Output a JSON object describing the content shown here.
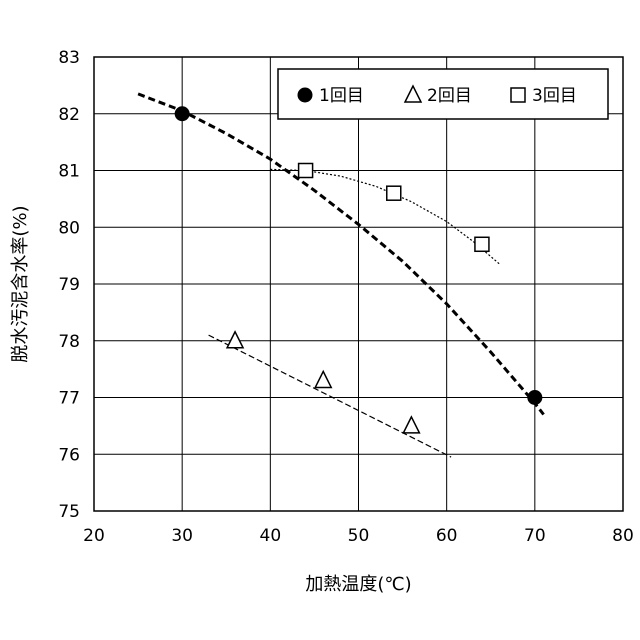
{
  "chart_data": {
    "type": "scatter",
    "title": "",
    "xlabel": "加熱温度(℃)",
    "ylabel": "脱水汚泥含水率(%)",
    "xlim": [
      20,
      80
    ],
    "ylim": [
      75,
      83
    ],
    "xticks": [
      20,
      30,
      40,
      50,
      60,
      70,
      80
    ],
    "yticks": [
      75,
      76,
      77,
      78,
      79,
      80,
      81,
      82,
      83
    ],
    "grid": true,
    "legend_position": "top-right",
    "series": [
      {
        "name": "1回目",
        "marker": "filled-circle",
        "points": [
          {
            "x": 30,
            "y": 82.0
          },
          {
            "x": 70,
            "y": 77.0
          }
        ],
        "trend": {
          "style": "thick-dashed",
          "x_range": [
            25,
            71
          ],
          "points": [
            [
              25,
              82.35
            ],
            [
              30,
              82.05
            ],
            [
              35,
              81.65
            ],
            [
              40,
              81.2
            ],
            [
              45,
              80.65
            ],
            [
              50,
              80.05
            ],
            [
              55,
              79.4
            ],
            [
              60,
              78.65
            ],
            [
              65,
              77.8
            ],
            [
              70,
              76.9
            ],
            [
              71,
              76.7
            ]
          ]
        }
      },
      {
        "name": "2回目",
        "marker": "open-triangle",
        "points": [
          {
            "x": 36,
            "y": 78.0
          },
          {
            "x": 46,
            "y": 77.3
          },
          {
            "x": 56,
            "y": 76.5
          }
        ],
        "trend": {
          "style": "dashed",
          "x_range": [
            33,
            60.5
          ],
          "points": [
            [
              33,
              78.1
            ],
            [
              60.5,
              75.95
            ]
          ]
        }
      },
      {
        "name": "3回目",
        "marker": "open-square",
        "points": [
          {
            "x": 44,
            "y": 81.0
          },
          {
            "x": 54,
            "y": 80.6
          },
          {
            "x": 64,
            "y": 79.7
          }
        ],
        "trend": {
          "style": "dotted",
          "x_range": [
            40,
            66
          ],
          "points": [
            [
              40,
              81.02
            ],
            [
              44,
              81.0
            ],
            [
              48,
              80.9
            ],
            [
              52,
              80.72
            ],
            [
              56,
              80.45
            ],
            [
              60,
              80.1
            ],
            [
              63,
              79.75
            ],
            [
              66,
              79.35
            ]
          ]
        }
      }
    ],
    "colors": {
      "axis": "#000000",
      "grid": "#000000",
      "marker": "#000000"
    }
  }
}
